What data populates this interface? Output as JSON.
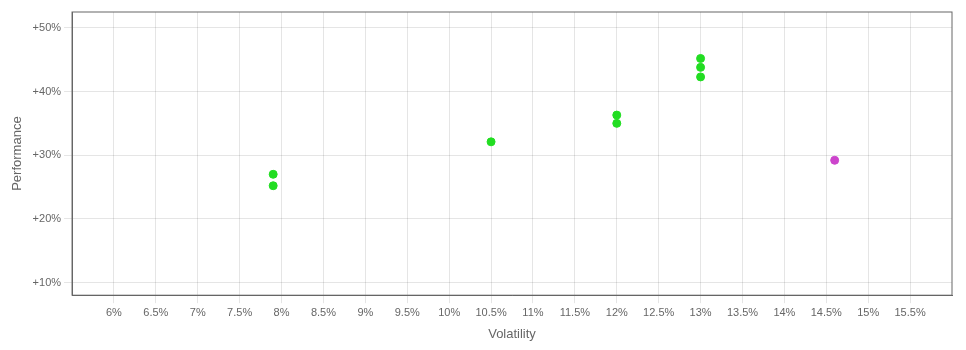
{
  "chart_data": {
    "type": "scatter",
    "xlabel": "Volatility",
    "ylabel": "Performance",
    "xlim": [
      0.055,
      0.16
    ],
    "ylim": [
      0.08,
      0.525
    ],
    "xticks": [
      {
        "value": 0.06,
        "label": "6%"
      },
      {
        "value": 0.065,
        "label": "6.5%"
      },
      {
        "value": 0.07,
        "label": "7%"
      },
      {
        "value": 0.075,
        "label": "7.5%"
      },
      {
        "value": 0.08,
        "label": "8%"
      },
      {
        "value": 0.085,
        "label": "8.5%"
      },
      {
        "value": 0.09,
        "label": "9%"
      },
      {
        "value": 0.095,
        "label": "9.5%"
      },
      {
        "value": 0.1,
        "label": "10%"
      },
      {
        "value": 0.105,
        "label": "10.5%"
      },
      {
        "value": 0.11,
        "label": "11%"
      },
      {
        "value": 0.115,
        "label": "11.5%"
      },
      {
        "value": 0.12,
        "label": "12%"
      },
      {
        "value": 0.125,
        "label": "12.5%"
      },
      {
        "value": 0.13,
        "label": "13%"
      },
      {
        "value": 0.135,
        "label": "13.5%"
      },
      {
        "value": 0.14,
        "label": "14%"
      },
      {
        "value": 0.145,
        "label": "14.5%"
      },
      {
        "value": 0.15,
        "label": "15%"
      },
      {
        "value": 0.155,
        "label": "15.5%"
      }
    ],
    "yticks": [
      {
        "value": 0.1,
        "label": "+10%"
      },
      {
        "value": 0.2,
        "label": "+20%"
      },
      {
        "value": 0.3,
        "label": "+30%"
      },
      {
        "value": 0.4,
        "label": "+40%"
      },
      {
        "value": 0.5,
        "label": "+50%"
      }
    ],
    "grid": true,
    "series": [
      {
        "color": "#22dd22",
        "x": [
          0.079,
          0.079,
          0.105,
          0.12,
          0.12,
          0.13,
          0.13,
          0.13
        ],
        "values": [
          0.27,
          0.252,
          0.321,
          0.363,
          0.35,
          0.452,
          0.438,
          0.423
        ]
      },
      {
        "color": "#cc44cc",
        "x": [
          0.146
        ],
        "values": [
          0.292
        ]
      }
    ]
  }
}
